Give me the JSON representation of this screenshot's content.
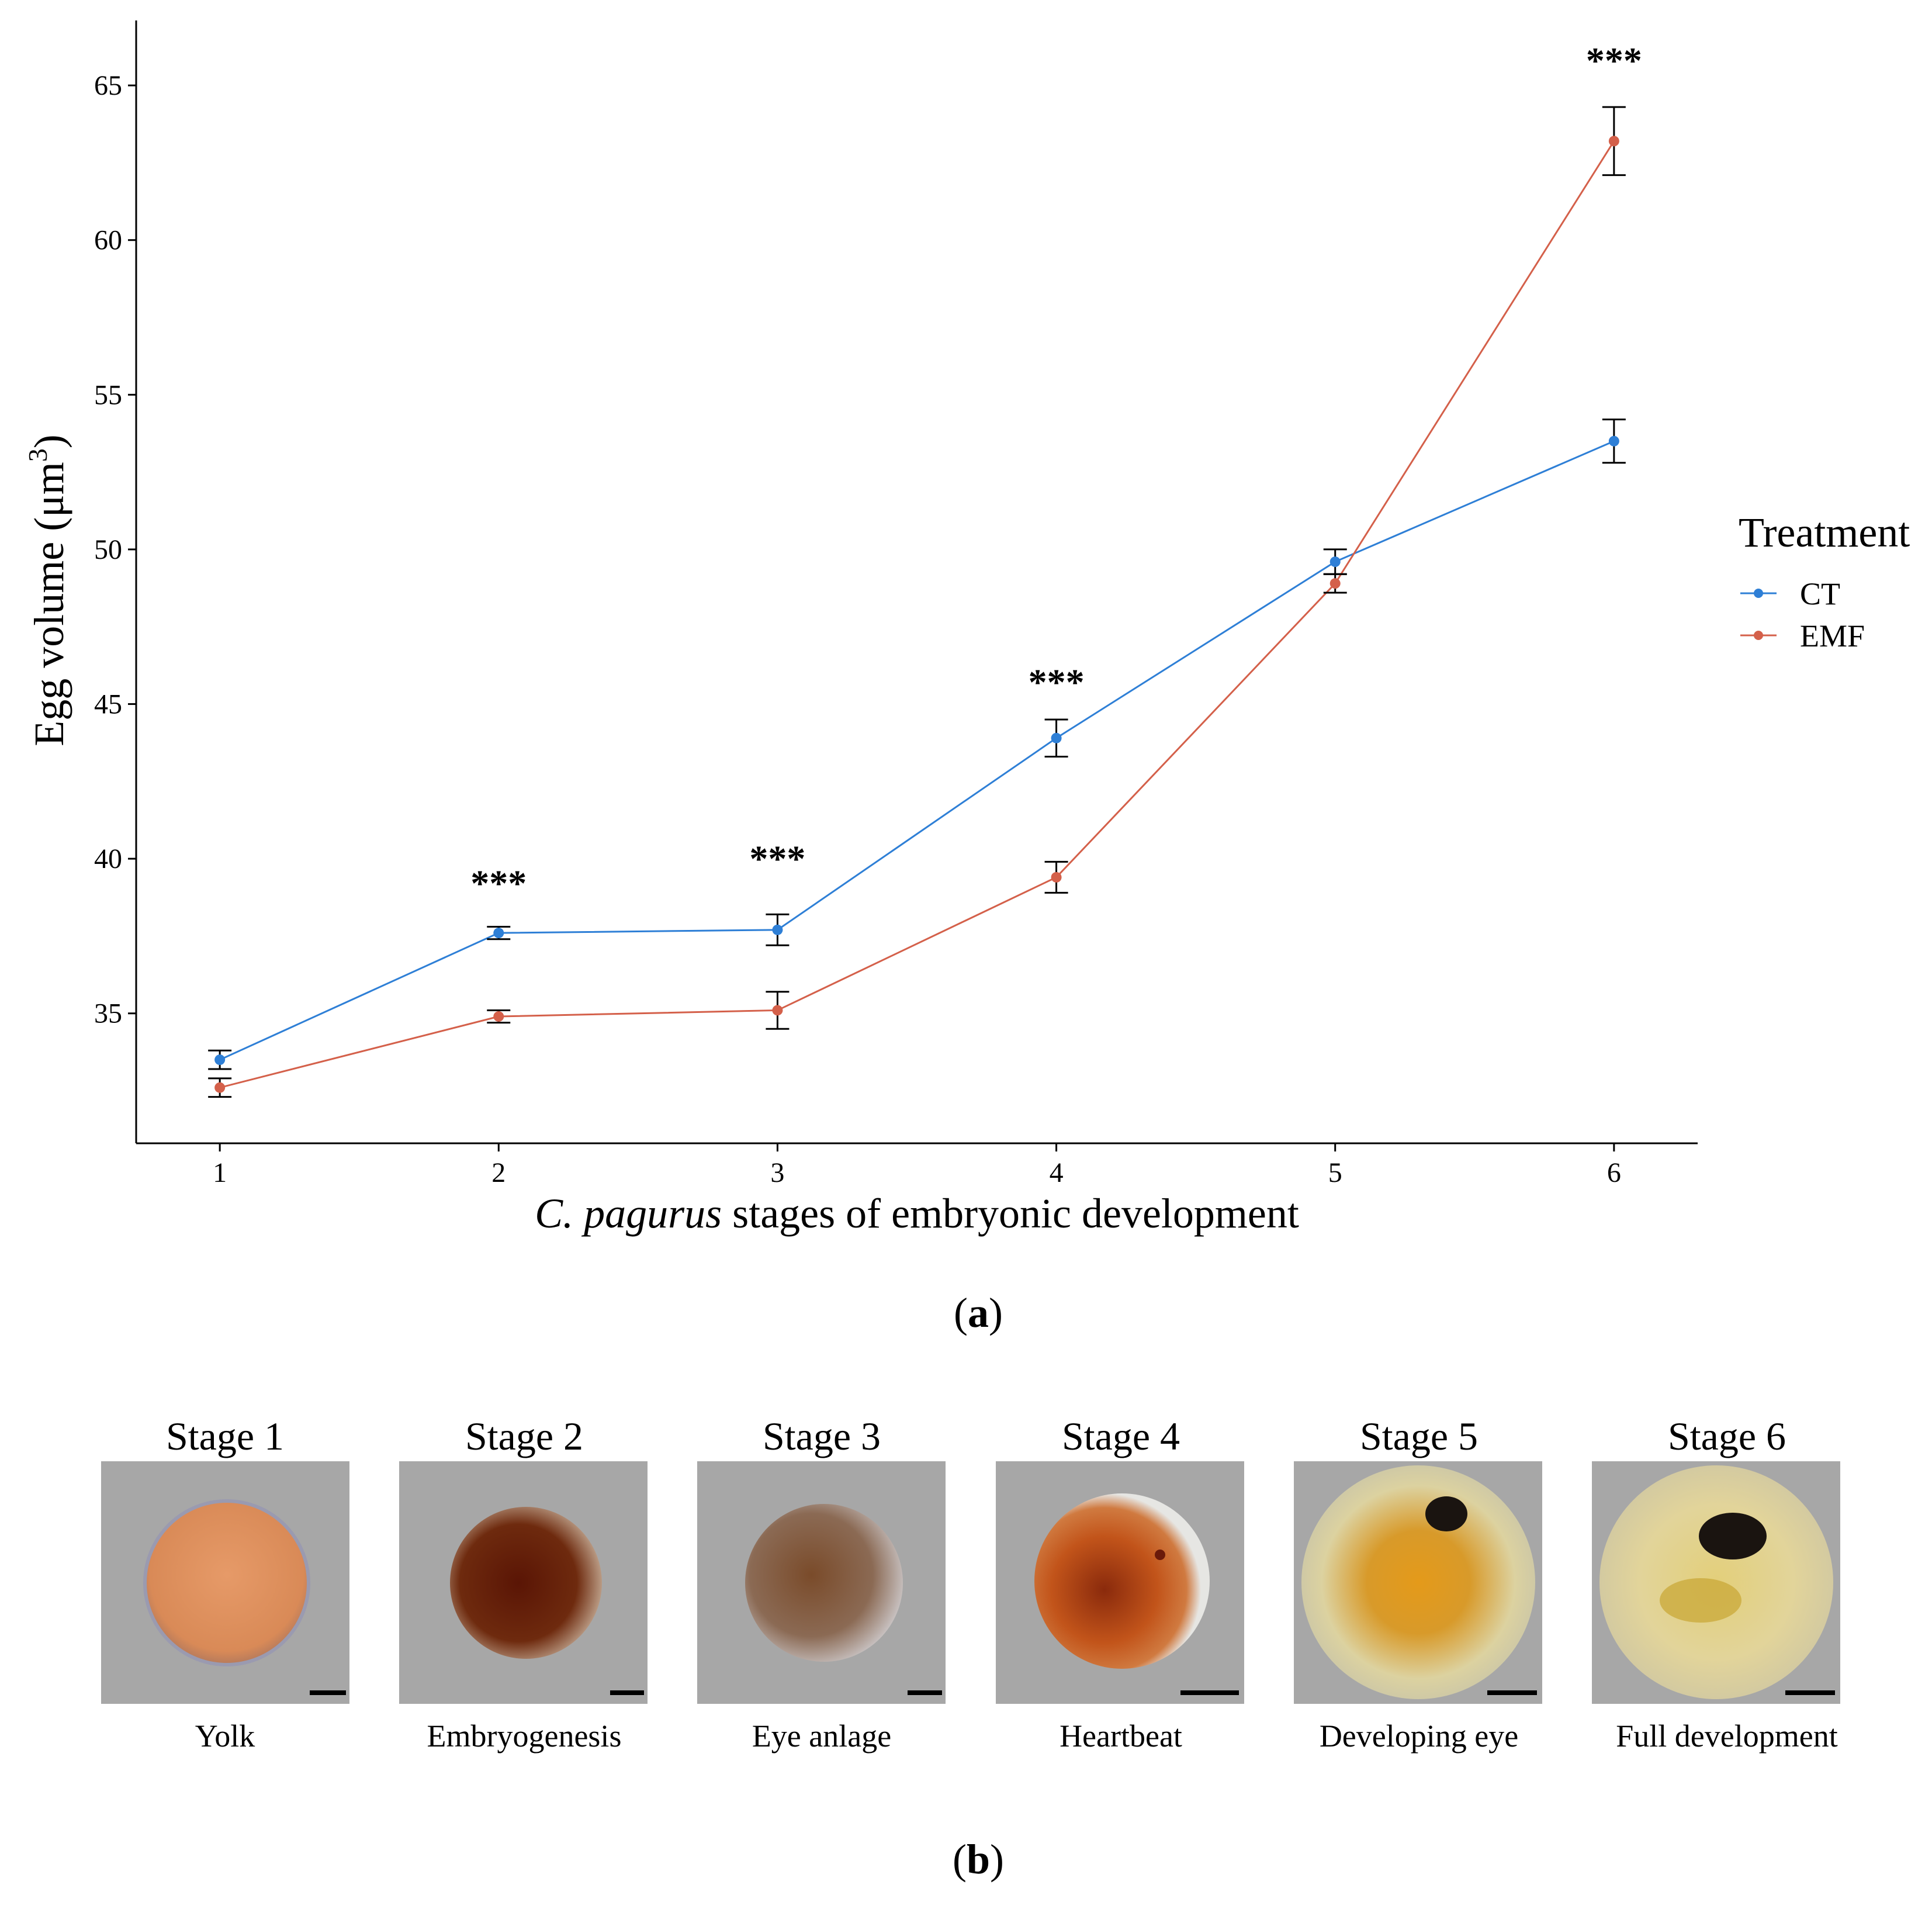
{
  "chart_data": {
    "type": "line",
    "x": [
      1,
      2,
      3,
      4,
      5,
      6
    ],
    "xticks": [
      "1",
      "2",
      "3",
      "4",
      "5",
      "6"
    ],
    "xlim": [
      0.7,
      6.3
    ],
    "xlabel_italic": "C. pagurus",
    "xlabel_rest": " stages of embryonic development",
    "ylabel_main": "Egg volume (μm",
    "ylabel_sup": "3",
    "ylabel_close": ")",
    "yticks": [
      "35",
      "40",
      "45",
      "50",
      "55",
      "60",
      "65"
    ],
    "ytick_values": [
      35,
      40,
      45,
      50,
      55,
      60,
      65
    ],
    "ylim": [
      30.8,
      67.1
    ],
    "grid": false,
    "legend_title": "Treatment",
    "legend_position": "right",
    "series": [
      {
        "name": "CT",
        "color": "#2e7fd6",
        "values": [
          33.5,
          37.6,
          37.7,
          43.9,
          49.6,
          53.5
        ],
        "err": [
          0.3,
          0.2,
          0.5,
          0.6,
          0.4,
          0.7
        ]
      },
      {
        "name": "EMF",
        "color": "#d4604a",
        "values": [
          32.6,
          34.9,
          35.1,
          39.4,
          48.9,
          63.2
        ],
        "err": [
          0.3,
          0.2,
          0.6,
          0.5,
          0.3,
          1.1
        ]
      }
    ],
    "significance": [
      {
        "x": 2,
        "label": "***",
        "y": 38.8
      },
      {
        "x": 3,
        "label": "***",
        "y": 39.6
      },
      {
        "x": 4,
        "label": "***",
        "y": 45.3
      },
      {
        "x": 6,
        "label": "***",
        "y": 65.4
      }
    ]
  },
  "panel_a_label": "a",
  "panel_b_label": "b",
  "stages": [
    {
      "title": "Stage 1",
      "caption": "Yolk"
    },
    {
      "title": "Stage 2",
      "caption": "Embryogenesis"
    },
    {
      "title": "Stage 3",
      "caption": "Eye anlage"
    },
    {
      "title": "Stage 4",
      "caption": "Heartbeat"
    },
    {
      "title": "Stage 5",
      "caption": "Developing eye"
    },
    {
      "title": "Stage 6",
      "caption": "Full development"
    }
  ]
}
